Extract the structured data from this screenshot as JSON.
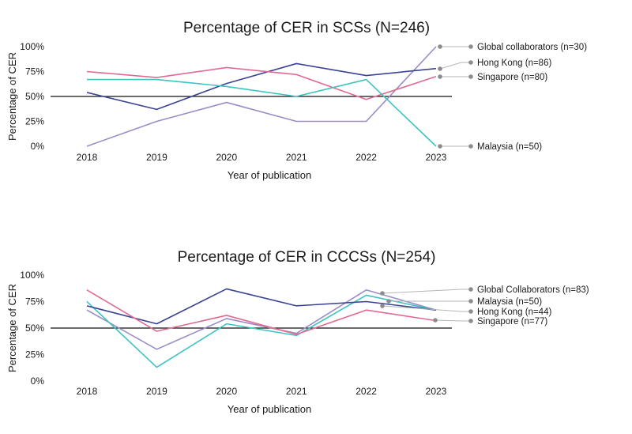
{
  "chart_data": [
    {
      "type": "line",
      "title": "Percentage of CER in SCSs (N=246)",
      "xlabel": "Year of publication",
      "ylabel": "Percentage of CER",
      "categories": [
        "2018",
        "2019",
        "2020",
        "2021",
        "2022",
        "2023"
      ],
      "ylim": [
        0,
        100
      ],
      "yticks": [
        "0%",
        "25%",
        "50%",
        "75%",
        "100%"
      ],
      "reference_line": 50,
      "grid": false,
      "series": [
        {
          "name": "Global collaborators (n=30)",
          "color": "#9b8cc6",
          "values": [
            0,
            25,
            44,
            25,
            25,
            100
          ]
        },
        {
          "name": "Hong Kong (n=86)",
          "color": "#3b4394",
          "values": [
            54,
            37,
            63,
            83,
            71,
            78
          ]
        },
        {
          "name": "Singapore (n=80)",
          "color": "#e06b8f",
          "values": [
            75,
            69,
            79,
            72,
            47,
            70
          ]
        },
        {
          "name": "Malaysia (n=50)",
          "color": "#3cc4c2",
          "values": [
            67,
            67,
            60,
            50,
            67,
            0
          ]
        }
      ]
    },
    {
      "type": "line",
      "title": "Percentage of CER in CCCSs (N=254)",
      "xlabel": "Year of publication",
      "ylabel": "Percentage of CER",
      "categories": [
        "2018",
        "2019",
        "2020",
        "2021",
        "2022",
        "2023"
      ],
      "ylim": [
        0,
        100
      ],
      "yticks": [
        "0%",
        "25%",
        "50%",
        "75%",
        "100%"
      ],
      "reference_line": 50,
      "grid": false,
      "series": [
        {
          "name": "Global Collaborators (n=83)",
          "color": "#9b8cc6",
          "values": [
            67,
            30,
            59,
            45,
            86,
            67
          ]
        },
        {
          "name": "Malaysia (n=50)",
          "color": "#3cc4c2",
          "values": [
            75,
            13,
            54,
            43,
            81,
            67
          ]
        },
        {
          "name": "Hong Kong (n=44)",
          "color": "#3b4394",
          "values": [
            71,
            54,
            87,
            71,
            75,
            67
          ]
        },
        {
          "name": "Singapore (n=77)",
          "color": "#e06b8f",
          "values": [
            86,
            47,
            62,
            44,
            67,
            57
          ]
        }
      ]
    }
  ]
}
